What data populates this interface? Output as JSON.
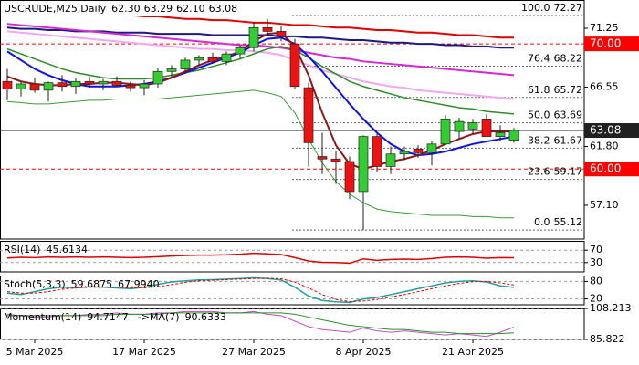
{
  "chart_data": [
    {
      "type": "candlestick",
      "title": "USCRUDE,M25,Daily",
      "last_ohlc": [
        {
          "value": 62.3,
          "label": "62.30"
        },
        63.29,
        {
          "value": 62.1,
          "label": "62.10"
        },
        63.08
      ],
      "categories": [
        null,
        null,
        "5 Mar 2025",
        null,
        null,
        null,
        null,
        null,
        null,
        null,
        "17 Mar 2025",
        null,
        null,
        null,
        null,
        null,
        null,
        null,
        "27 Mar 2025",
        null,
        null,
        null,
        null,
        null,
        null,
        null,
        "8 Apr 2025",
        null,
        null,
        null,
        null,
        null,
        null,
        null,
        "21 Apr 2025",
        null,
        null,
        null
      ],
      "open": [
        67.0,
        66.4,
        66.8,
        66.3,
        66.9,
        66.6,
        67.0,
        66.8,
        67.0,
        66.7,
        66.5,
        66.8,
        67.8,
        68.0,
        68.7,
        68.9,
        68.6,
        69.2,
        69.7,
        71.3,
        71.0,
        70.0,
        66.5,
        61.0,
        60.8,
        60.6,
        58.2,
        62.6,
        60.2,
        61.2,
        61.6,
        61.3,
        62.0,
        63.0,
        63.2,
        64.0,
        62.6,
        62.3
      ],
      "high": [
        68.0,
        67.0,
        67.3,
        67.0,
        67.5,
        67.3,
        67.4,
        67.2,
        67.4,
        67.0,
        67.1,
        68.1,
        68.3,
        68.9,
        69.1,
        69.3,
        69.4,
        69.9,
        71.7,
        72.0,
        71.4,
        70.4,
        66.9,
        62.9,
        61.4,
        61.0,
        62.7,
        62.8,
        61.8,
        61.8,
        61.9,
        62.2,
        64.3,
        64.1,
        64.0,
        64.4,
        63.5,
        63.29
      ],
      "low": [
        65.5,
        65.8,
        66.1,
        65.4,
        66.2,
        66.0,
        66.5,
        66.3,
        66.6,
        66.2,
        65.9,
        66.5,
        67.3,
        67.6,
        68.2,
        68.4,
        68.3,
        68.8,
        69.4,
        70.6,
        70.2,
        66.4,
        60.2,
        59.6,
        58.8,
        57.6,
        55.12,
        59.8,
        59.6,
        60.7,
        60.9,
        60.3,
        61.9,
        62.4,
        62.8,
        62.6,
        62.2,
        62.1
      ],
      "close": [
        66.4,
        66.8,
        66.3,
        66.9,
        66.6,
        67.0,
        66.8,
        67.0,
        66.7,
        66.5,
        66.8,
        67.8,
        68.0,
        68.7,
        68.9,
        68.6,
        69.2,
        69.7,
        71.3,
        71.0,
        70.6,
        66.6,
        62.1,
        60.8,
        60.6,
        58.2,
        62.6,
        60.2,
        61.2,
        61.4,
        61.3,
        62.0,
        64.0,
        63.8,
        63.7,
        62.6,
        62.9,
        63.08
      ],
      "up_color": "#33cc33",
      "down_color": "#ee1111",
      "series": [
        {
          "color": "#e00000",
          "width": 2,
          "values": [
            72.9,
            72.8,
            72.8,
            72.7,
            72.6,
            72.6,
            72.5,
            72.4,
            72.4,
            72.3,
            72.2,
            72.2,
            72.1,
            72.0,
            72.0,
            71.9,
            71.9,
            71.8,
            71.7,
            71.7,
            71.6,
            71.5,
            71.5,
            71.4,
            71.3,
            71.3,
            71.2,
            71.1,
            71.1,
            71.0,
            70.9,
            70.9,
            70.8,
            70.7,
            70.7,
            70.6,
            70.5,
            70.5
          ]
        },
        {
          "color": "#1a1a80",
          "width": 2,
          "values": [
            71.3,
            71.2,
            71.2,
            71.1,
            71.1,
            71.0,
            71.0,
            71.0,
            70.9,
            70.9,
            70.9,
            70.8,
            70.8,
            70.8,
            70.8,
            70.7,
            70.7,
            70.7,
            70.7,
            70.7,
            70.6,
            70.6,
            70.5,
            70.5,
            70.4,
            70.3,
            70.3,
            70.2,
            70.1,
            70.1,
            70.0,
            70.0,
            69.9,
            69.9,
            69.8,
            69.8,
            69.7,
            69.7
          ]
        },
        {
          "color": "#d42ad4",
          "width": 2,
          "values": [
            71.6,
            71.5,
            71.4,
            71.3,
            71.2,
            71.1,
            71.0,
            70.9,
            70.8,
            70.7,
            70.6,
            70.5,
            70.4,
            70.3,
            70.2,
            70.1,
            70.0,
            69.9,
            69.9,
            69.8,
            69.7,
            69.5,
            69.3,
            69.1,
            68.9,
            68.8,
            68.6,
            68.5,
            68.4,
            68.3,
            68.2,
            68.1,
            68.0,
            67.9,
            67.8,
            67.7,
            67.6,
            67.5
          ]
        },
        {
          "color": "#f0a8f0",
          "width": 2,
          "values": [
            71.0,
            70.9,
            70.8,
            70.7,
            70.6,
            70.5,
            70.4,
            70.3,
            70.2,
            70.1,
            70.0,
            69.9,
            69.8,
            69.7,
            69.6,
            69.6,
            69.5,
            69.5,
            69.4,
            69.3,
            69.1,
            68.7,
            68.3,
            67.9,
            67.6,
            67.3,
            67.0,
            66.8,
            66.6,
            66.5,
            66.3,
            66.2,
            66.1,
            66.0,
            65.9,
            65.8,
            65.7,
            65.6
          ]
        },
        {
          "color": "#2e8b2e",
          "width": 1.5,
          "values": [
            69.6,
            69.2,
            68.8,
            68.4,
            68.0,
            67.7,
            67.5,
            67.3,
            67.2,
            67.2,
            67.2,
            67.3,
            67.5,
            67.7,
            67.9,
            68.2,
            68.5,
            68.8,
            69.2,
            69.6,
            69.8,
            69.5,
            68.9,
            68.2,
            67.6,
            67.0,
            66.6,
            66.3,
            66.0,
            65.7,
            65.5,
            65.3,
            65.1,
            64.9,
            64.8,
            64.6,
            64.5,
            64.4
          ]
        },
        {
          "color": "#1010e0",
          "width": 2,
          "values": [
            69.4,
            68.7,
            68.0,
            67.5,
            67.1,
            66.8,
            66.6,
            66.6,
            66.6,
            66.7,
            66.8,
            67.0,
            67.3,
            67.7,
            68.1,
            68.5,
            68.9,
            69.3,
            69.9,
            70.4,
            70.5,
            70.0,
            69.0,
            67.8,
            66.5,
            65.2,
            64.0,
            62.9,
            62.0,
            61.4,
            61.1,
            61.2,
            61.4,
            61.7,
            62.0,
            62.2,
            62.4,
            62.6
          ]
        },
        {
          "color": "#8b1a1a",
          "width": 2,
          "values": [
            67.4,
            67.0,
            66.8,
            66.7,
            66.7,
            66.8,
            66.8,
            66.9,
            66.9,
            66.8,
            66.7,
            66.9,
            67.3,
            67.8,
            68.3,
            68.7,
            69.0,
            69.4,
            70.2,
            70.8,
            70.9,
            69.8,
            67.5,
            64.5,
            61.9,
            60.4,
            60.0,
            60.3,
            60.6,
            60.8,
            61.1,
            61.5,
            62.0,
            62.4,
            62.8,
            63.0,
            63.0,
            63.0
          ]
        },
        {
          "color": "#3a9a3a",
          "width": 1,
          "values": [
            65.4,
            65.3,
            65.2,
            65.2,
            65.3,
            65.4,
            65.5,
            65.5,
            65.6,
            65.6,
            65.6,
            65.6,
            65.7,
            65.8,
            65.9,
            66.0,
            66.1,
            66.2,
            66.3,
            66.1,
            65.8,
            64.5,
            62.4,
            60.5,
            59.0,
            58.0,
            57.3,
            56.8,
            56.6,
            56.5,
            56.4,
            56.3,
            56.3,
            56.3,
            56.2,
            56.2,
            56.1,
            56.1
          ]
        }
      ],
      "ylim": [
        54.4,
        73.51
      ],
      "yticks": [
        71.25,
        66.55,
        {
          "value": 61.8,
          "label": "61.80"
        },
        {
          "value": 57.1,
          "label": "57.10"
        }
      ],
      "price_lines": [
        {
          "value": 70,
          "label": "70.00",
          "color": "#ff0000",
          "dash": true
        },
        {
          "value": 63.08,
          "color": "#202020",
          "dash": false
        },
        {
          "value": 60,
          "label": "60.00",
          "color": "#ff0000",
          "dash": true
        }
      ],
      "fibonacci": [
        {
          "ratio": {
            "value": 100,
            "label": "100.0"
          },
          "value": 72.27
        },
        {
          "ratio": 76.4,
          "value": 68.22
        },
        {
          "ratio": 61.8,
          "value": 65.72
        },
        {
          "ratio": {
            "value": 50,
            "label": "50.0"
          },
          "value": 63.69
        },
        {
          "ratio": 38.2,
          "value": 61.67
        },
        {
          "ratio": 23.6,
          "value": 59.17
        },
        {
          "ratio": {
            "value": 0,
            "label": "0.0"
          },
          "value": 55.12
        }
      ]
    },
    {
      "type": "line",
      "title": "RSI(14)",
      "ylim": [
        0,
        100
      ],
      "yticks": [
        70,
        30
      ],
      "series": [
        {
          "color": "#e00000",
          "width": 1.5,
          "values": [
            45,
            47,
            46,
            48,
            47,
            48,
            47,
            48,
            47,
            46,
            47,
            49,
            51,
            53,
            54,
            54,
            55,
            57,
            60,
            58,
            56,
            46,
            35,
            31,
            30,
            28,
            42,
            37,
            40,
            41,
            40,
            43,
            47,
            48,
            47,
            44,
            46,
            45.6134
          ]
        }
      ]
    },
    {
      "type": "line",
      "title": "Stoch(5,3,3)",
      "ylim": [
        0,
        100
      ],
      "yticks": [
        80,
        20
      ],
      "series": [
        {
          "color": "#20a0a0",
          "width": 1.5,
          "values": [
            40,
            35,
            45,
            55,
            60,
            58,
            62,
            60,
            58,
            55,
            60,
            70,
            78,
            82,
            85,
            86,
            88,
            90,
            92,
            90,
            85,
            60,
            30,
            15,
            10,
            8,
            20,
            25,
            35,
            45,
            55,
            65,
            75,
            80,
            82,
            78,
            65,
            59.6875
          ]
        },
        {
          "color": "#e00000",
          "width": 1,
          "dash": true,
          "values": [
            45,
            40,
            40,
            45,
            53,
            58,
            60,
            60,
            60,
            58,
            58,
            62,
            69,
            77,
            82,
            84,
            86,
            88,
            90,
            91,
            89,
            78,
            58,
            35,
            18,
            11,
            13,
            18,
            27,
            35,
            45,
            55,
            65,
            73,
            79,
            80,
            75,
            67.994
          ],
          "value_labels": [
            null,
            null,
            null,
            null,
            null,
            null,
            null,
            null,
            null,
            null,
            null,
            null,
            null,
            null,
            null,
            null,
            null,
            null,
            null,
            null,
            null,
            null,
            null,
            null,
            null,
            null,
            null,
            null,
            null,
            null,
            null,
            null,
            null,
            null,
            null,
            null,
            null,
            "67.9940"
          ]
        }
      ]
    },
    {
      "type": "line",
      "title": "Momentum(14)",
      "ylim": [
        85.822,
        108.213
      ],
      "yticks": [
        108.213,
        85.822
      ],
      "series": [
        {
          "color": "#c050c0",
          "width": 1,
          "values": [
            104,
            103,
            102,
            102,
            103,
            103,
            104,
            104,
            105,
            104,
            104,
            105,
            105,
            106,
            106,
            106,
            105,
            105,
            106,
            104,
            103,
            99,
            95,
            93,
            92,
            91,
            94,
            92,
            91,
            92,
            91,
            90,
            89,
            90,
            89,
            88,
            91,
            94.7147
          ]
        },
        {
          "name": "->MA(7)",
          "color": "#2e8b2e",
          "width": 1,
          "values": [
            103,
            103,
            103,
            103,
            103,
            103,
            103,
            103,
            104,
            104,
            104,
            104,
            105,
            105,
            105,
            105,
            105,
            105,
            105,
            105,
            105,
            104,
            102,
            100,
            98,
            96,
            95,
            94,
            93,
            93,
            92,
            91,
            91,
            90,
            90,
            90,
            90,
            90.6333
          ]
        }
      ]
    }
  ]
}
